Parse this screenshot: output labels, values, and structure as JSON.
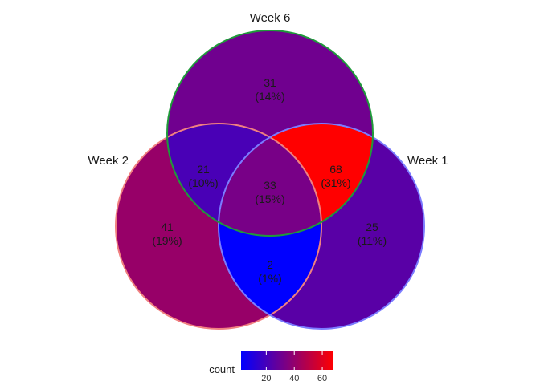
{
  "chart_data": {
    "type": "venn",
    "sets": [
      "Week 6",
      "Week 2",
      "Week 1"
    ],
    "regions": [
      {
        "sets": [
          "Week 6"
        ],
        "count": 31,
        "percent": "(14%)"
      },
      {
        "sets": [
          "Week 2"
        ],
        "count": 41,
        "percent": "(19%)"
      },
      {
        "sets": [
          "Week 1"
        ],
        "count": 25,
        "percent": "(11%)"
      },
      {
        "sets": [
          "Week 6",
          "Week 2"
        ],
        "count": 21,
        "percent": "(10%)"
      },
      {
        "sets": [
          "Week 6",
          "Week 1"
        ],
        "count": 68,
        "percent": "(31%)"
      },
      {
        "sets": [
          "Week 2",
          "Week 1"
        ],
        "count": 2,
        "percent": "(1%)"
      },
      {
        "sets": [
          "Week 6",
          "Week 2",
          "Week 1"
        ],
        "count": 33,
        "percent": "(15%)"
      }
    ],
    "set_colors": {
      "Week 6": "#1f9a3a",
      "Week 2": "#f08080",
      "Week 1": "#7b7bff"
    },
    "legend": {
      "title": "count",
      "placement": "bottom",
      "low_color": "#0000ff",
      "high_color": "#ff0000",
      "range": [
        2,
        68
      ],
      "ticks": [
        20,
        40,
        60
      ]
    }
  }
}
